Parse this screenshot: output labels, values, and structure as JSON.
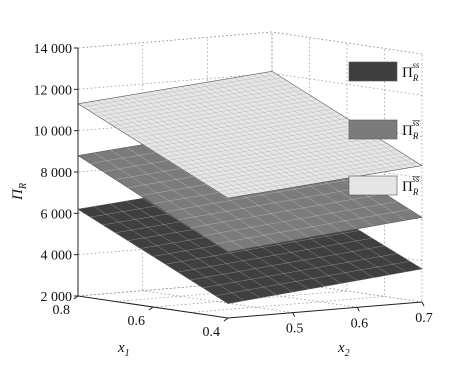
{
  "chart_data": {
    "type": "surface",
    "xlabel": "x",
    "xlabel_sub": "1",
    "ylabel": "x",
    "ylabel_sub": "2",
    "zlabel": "Π",
    "zlabel_sub": "R",
    "x_ticks": [
      "0.8",
      "0.6",
      "0.4"
    ],
    "y_ticks": [
      "0.5",
      "0.6",
      "0.7"
    ],
    "z_ticks": [
      "2 000",
      "4 000",
      "6 000",
      "8 000",
      "10 000",
      "12 000",
      "14 000"
    ],
    "xlim": [
      0.4,
      0.8
    ],
    "ylim": [
      0.4,
      0.7
    ],
    "zlim": [
      2000,
      14000
    ],
    "grid": true,
    "legend_position": "right",
    "series": [
      {
        "name": "Π",
        "sub": "R",
        "sup": "ss",
        "color": "#3f3f3f",
        "corners": {
          "x1_0.8_x2_0.4": 6200,
          "x1_0.4_x2_0.4": 2700,
          "x1_0.4_x2_0.7": 3600,
          "x1_0.8_x2_0.7": 7000
        }
      },
      {
        "name": "Π",
        "sub": "R",
        "sup": "s̅s̅",
        "color": "#7b7b7b",
        "corners": {
          "x1_0.8_x2_0.4": 8800,
          "x1_0.4_x2_0.4": 5200,
          "x1_0.4_x2_0.7": 6100,
          "x1_0.8_x2_0.7": 9600
        }
      },
      {
        "name": "Π",
        "sub": "R",
        "sup": "s̅s̅",
        "color": "#e6e6e6",
        "corners": {
          "x1_0.8_x2_0.4": 11300,
          "x1_0.4_x2_0.4": 7800,
          "x1_0.4_x2_0.7": 8600,
          "x1_0.8_x2_0.7": 12100
        }
      }
    ]
  }
}
